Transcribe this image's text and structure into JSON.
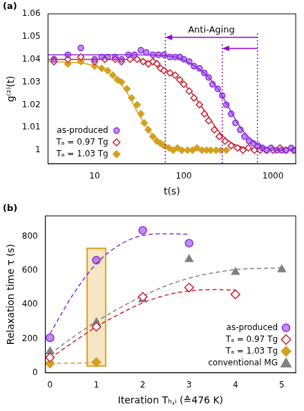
{
  "chart_data": [
    {
      "type": "scatter",
      "title": "(a)",
      "x_label": "t(s)",
      "y_label": "g⁽²⁾(t)",
      "log": "x",
      "grid": false,
      "legend": "lower left",
      "xlim": [
        3,
        1800
      ],
      "xticks": [
        10,
        100,
        1000
      ],
      "ylim": [
        0.994,
        1.06
      ],
      "yticks": [
        1,
        1.01,
        1.02,
        1.03,
        1.04,
        1.05,
        1.06
      ],
      "annotation": {
        "text": "Anti-Aging",
        "color": "#9400d3",
        "lines": [
          62,
          270,
          670
        ]
      },
      "series": [
        {
          "name": "as-produced",
          "color": "#8a2be2",
          "marker": "circle",
          "line_style": "solid",
          "x": [
            3.5,
            5,
            7,
            10,
            12,
            14,
            17,
            20,
            24,
            28,
            33,
            38,
            45,
            52,
            60,
            70,
            80,
            90,
            100,
            115,
            130,
            150,
            170,
            190,
            210,
            240,
            270,
            300,
            340,
            380,
            430,
            480,
            540,
            600,
            680,
            760,
            850,
            950,
            1100,
            1250,
            1400,
            1600,
            1750
          ],
          "values": [
            1.04,
            1.042,
            1.045,
            1.04,
            1.041,
            1.041,
            1.041,
            1.04,
            1.042,
            1.042,
            1.044,
            1.043,
            1.042,
            1.042,
            1.042,
            1.041,
            1.041,
            1.041,
            1.04,
            1.039,
            1.037,
            1.036,
            1.034,
            1.032,
            1.029,
            1.027,
            1.024,
            1.02,
            1.016,
            1.012,
            1.009,
            1.006,
            1.004,
            1.003,
            1.002,
            1.001,
            1.0,
            1.001,
            1.0,
            1.0,
            1.0,
            1.001,
            1.0
          ],
          "fit": {
            "x": [
              3,
              30,
              80,
              120,
              180,
              250,
              350,
              450,
              600,
              800,
              1200,
              1800
            ],
            "values": [
              1.042,
              1.042,
              1.041,
              1.038,
              1.033,
              1.026,
              1.016,
              1.009,
              1.004,
              1.001,
              1.0,
              1.0
            ]
          }
        },
        {
          "name": "Tₐ = 0.97 Tg",
          "color": "#d0202e",
          "marker": "diamond-open",
          "line_style": "solid",
          "x": [
            3.5,
            5,
            7,
            10,
            13,
            17,
            20,
            25,
            30,
            35,
            40,
            45,
            50,
            55,
            60,
            70,
            80,
            90,
            100,
            115,
            130,
            150,
            170,
            190,
            220,
            250,
            290,
            340,
            400,
            460,
            530,
            620,
            720,
            850,
            1000,
            1200,
            1400,
            1700
          ],
          "values": [
            1.039,
            1.04,
            1.041,
            1.039,
            1.04,
            1.04,
            1.039,
            1.04,
            1.04,
            1.039,
            1.038,
            1.039,
            1.038,
            1.036,
            1.035,
            1.034,
            1.033,
            1.031,
            1.029,
            1.026,
            1.023,
            1.02,
            1.016,
            1.013,
            1.009,
            1.006,
            1.004,
            1.002,
            1.001,
            1.0,
            1.001,
            1.0,
            1.0,
            1.0,
            1.0,
            1.001,
            1.0,
            1.0
          ],
          "fit": {
            "x": [
              3,
              20,
              40,
              60,
              90,
              130,
              180,
              250,
              350,
              500,
              800,
              1800
            ],
            "values": [
              1.04,
              1.04,
              1.039,
              1.036,
              1.031,
              1.024,
              1.016,
              1.008,
              1.003,
              1.001,
              1.0,
              1.0
            ]
          }
        },
        {
          "name": "Tₐ = 1.03 Tg",
          "color": "#d4a020",
          "marker": "diamond",
          "line_style": "solid",
          "x": [
            3.5,
            5,
            7,
            10,
            12,
            14,
            16,
            18,
            20,
            23,
            26,
            30,
            33,
            36,
            40,
            45,
            50,
            55,
            60,
            68,
            76,
            85,
            95,
            110,
            125,
            140,
            160,
            180,
            200,
            230,
            260,
            300
          ],
          "values": [
            1.04,
            1.038,
            1.039,
            1.037,
            1.036,
            1.035,
            1.033,
            1.031,
            1.03,
            1.027,
            1.023,
            1.02,
            1.016,
            1.012,
            1.009,
            1.006,
            1.004,
            1.003,
            1.002,
            1.001,
            1.0,
            1.001,
            1.0,
            1.0,
            1.0,
            1.001,
            1.0,
            1.0,
            1.0,
            1.0,
            1.0,
            1.0
          ],
          "fit": {
            "x": [
              3,
              8,
              12,
              16,
              20,
              25,
              30,
              40,
              50,
              70,
              100,
              200
            ],
            "values": [
              1.039,
              1.038,
              1.036,
              1.033,
              1.029,
              1.023,
              1.017,
              1.009,
              1.004,
              1.001,
              1.0,
              1.0
            ]
          }
        }
      ]
    },
    {
      "type": "scatter",
      "title": "(b)",
      "x_label": "Iteration Tₕ,ᵢ (≙476 K)",
      "y_label": "Relaxation time τ (s)",
      "grid": false,
      "legend": "lower right",
      "xlim": [
        -0.1,
        5.3
      ],
      "xticks": [
        0,
        1,
        2,
        3,
        4,
        5
      ],
      "ylim": [
        0,
        920
      ],
      "yticks": [
        0,
        200,
        400,
        600,
        800
      ],
      "highlight": {
        "x": [
          0.8,
          1.2
        ],
        "y": [
          40,
          730
        ],
        "color": "#e0a020"
      },
      "series": [
        {
          "name": "as-produced",
          "color": "#8a2be2",
          "marker": "circle",
          "line_style": "dashed",
          "x": [
            0,
            1,
            2,
            3
          ],
          "values": [
            205,
            660,
            835,
            760
          ],
          "fit": {
            "x": [
              0,
              0.5,
              1,
              1.5,
              2,
              2.5,
              3
            ],
            "values": [
              230,
              460,
              640,
              750,
              805,
              815,
              812
            ]
          }
        },
        {
          "name": "Tₐ = 0.97 Tg",
          "color": "#d0202e",
          "marker": "diamond-open",
          "line_style": "dashed",
          "x": [
            0,
            1,
            2,
            3,
            4
          ],
          "values": [
            90,
            270,
            445,
            500,
            460
          ],
          "fit": {
            "x": [
              0,
              0.5,
              1,
              1.5,
              2,
              2.5,
              3,
              3.5,
              4
            ],
            "values": [
              85,
              180,
              270,
              345,
              410,
              455,
              480,
              488,
              485
            ]
          }
        },
        {
          "name": "Tₐ = 1.03 Tg",
          "color": "#d4a020",
          "marker": "diamond",
          "line_style": "dashed",
          "x": [
            0,
            1
          ],
          "values": [
            55,
            62
          ],
          "fit": {
            "x": [
              0,
              1
            ],
            "values": [
              55,
              58
            ]
          }
        },
        {
          "name": "conventional MG",
          "color": "#808080",
          "marker": "triangle",
          "line_style": "dashed",
          "x": [
            0,
            1,
            2,
            3,
            4,
            5
          ],
          "values": [
            125,
            295,
            430,
            665,
            590,
            605
          ],
          "fit": {
            "x": [
              0,
              0.5,
              1,
              1.5,
              2,
              2.5,
              3,
              3.5,
              4,
              4.5,
              5
            ],
            "values": [
              110,
              210,
              300,
              380,
              450,
              510,
              555,
              585,
              605,
              612,
              615
            ]
          }
        }
      ]
    }
  ]
}
